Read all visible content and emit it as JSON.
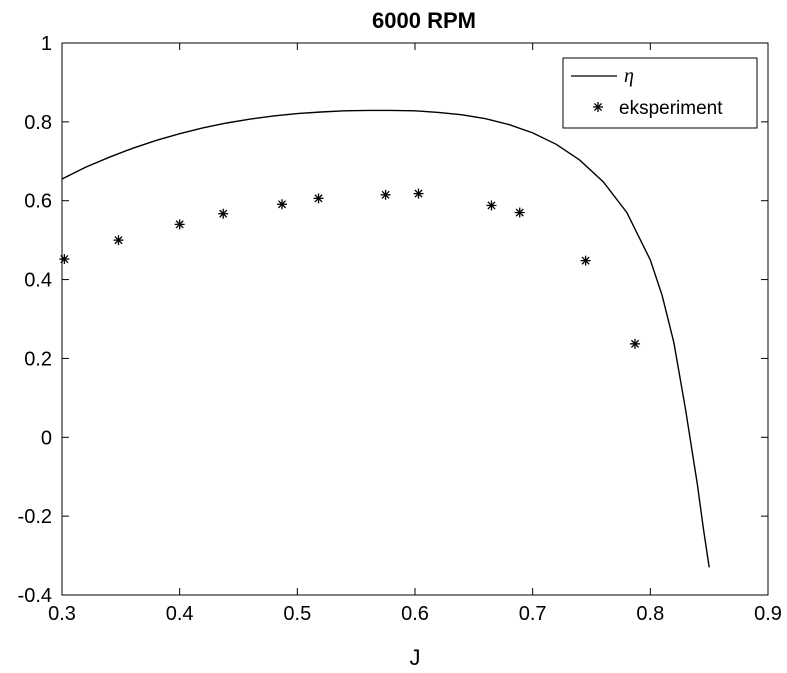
{
  "chart_data": {
    "type": "line",
    "title": "6000 RPM",
    "xlabel": "J",
    "ylabel": "",
    "xlim": [
      0.3,
      0.9
    ],
    "ylim": [
      -0.4,
      1.0
    ],
    "x_ticks": [
      "0.3",
      "0.4",
      "0.5",
      "0.6",
      "0.7",
      "0.8",
      "0.9"
    ],
    "y_ticks": [
      "-0.4",
      "-0.2",
      "0",
      "0.2",
      "0.4",
      "0.6",
      "0.8",
      "1"
    ],
    "grid": false,
    "legend_position": "top-right",
    "colors": {
      "line": "#000000",
      "markers": "#000000",
      "axes": "#000000"
    },
    "series": [
      {
        "name": "η",
        "style": "line",
        "x": [
          0.3,
          0.32,
          0.34,
          0.36,
          0.38,
          0.4,
          0.42,
          0.44,
          0.46,
          0.48,
          0.5,
          0.52,
          0.54,
          0.56,
          0.58,
          0.6,
          0.62,
          0.64,
          0.66,
          0.68,
          0.7,
          0.72,
          0.74,
          0.76,
          0.78,
          0.8,
          0.81,
          0.82,
          0.83,
          0.84,
          0.845,
          0.85
        ],
        "y": [
          0.655,
          0.685,
          0.71,
          0.733,
          0.753,
          0.77,
          0.785,
          0.797,
          0.807,
          0.815,
          0.821,
          0.825,
          0.828,
          0.829,
          0.829,
          0.828,
          0.824,
          0.818,
          0.808,
          0.793,
          0.772,
          0.743,
          0.703,
          0.648,
          0.57,
          0.45,
          0.36,
          0.24,
          0.07,
          -0.12,
          -0.23,
          -0.33
        ]
      },
      {
        "name": "eksperiment",
        "style": "marker-star",
        "x": [
          0.302,
          0.348,
          0.4,
          0.437,
          0.487,
          0.518,
          0.575,
          0.603,
          0.665,
          0.689,
          0.745,
          0.787
        ],
        "y": [
          0.452,
          0.5,
          0.54,
          0.567,
          0.591,
          0.606,
          0.615,
          0.618,
          0.588,
          0.57,
          0.448,
          0.237
        ]
      }
    ]
  }
}
